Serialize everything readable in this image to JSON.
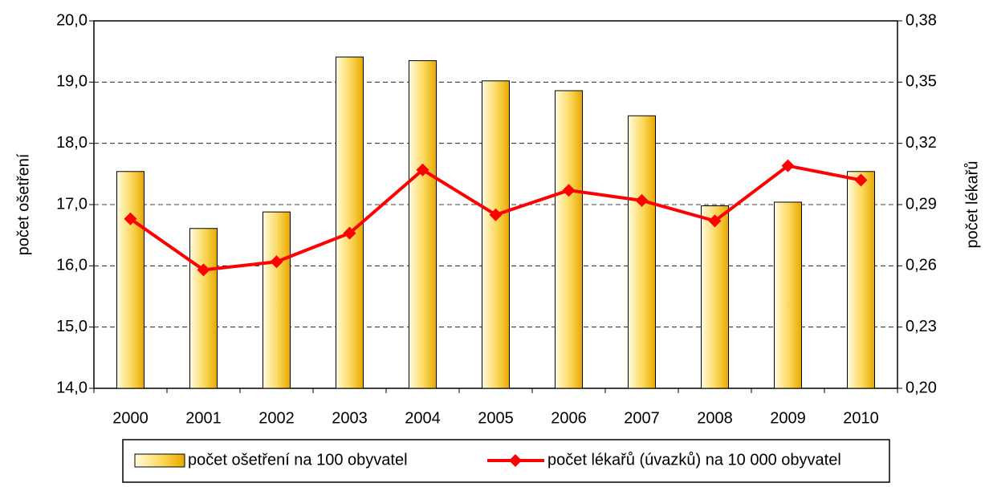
{
  "chart_data": {
    "type": "bar-line",
    "categories": [
      "2000",
      "2001",
      "2002",
      "2003",
      "2004",
      "2005",
      "2006",
      "2007",
      "2008",
      "2009",
      "2010"
    ],
    "y_label": "počet ošetření",
    "y2_label": "počet lékařů",
    "series": [
      {
        "name": "počet ošetření na 100 obyvatel",
        "type": "bar",
        "color": "#f7c62f",
        "values": [
          17.54,
          16.61,
          16.88,
          19.41,
          19.35,
          19.02,
          18.86,
          18.45,
          16.98,
          17.04,
          17.54
        ]
      },
      {
        "name": "počet lékařů (úvazků) na 10 000 obyvatel",
        "type": "line",
        "axis": "y2",
        "color": "#ff0000",
        "values": [
          0.283,
          0.258,
          0.262,
          0.276,
          0.307,
          0.285,
          0.297,
          0.292,
          0.282,
          0.309,
          0.302
        ]
      }
    ],
    "ylim": [
      14,
      20
    ],
    "yticks": [
      {
        "value": 14,
        "label": "14,0"
      },
      {
        "value": 15,
        "label": "15,0"
      },
      {
        "value": 16,
        "label": "16,0"
      },
      {
        "value": 17,
        "label": "17,0"
      },
      {
        "value": 18,
        "label": "18,0"
      },
      {
        "value": 19,
        "label": "19,0"
      },
      {
        "value": 20,
        "label": "20,0"
      }
    ],
    "y2lim": [
      0.2,
      0.38
    ],
    "y2ticks": [
      {
        "value": 0.2,
        "label": "0,20"
      },
      {
        "value": 0.23,
        "label": "0,23"
      },
      {
        "value": 0.26,
        "label": "0,26"
      },
      {
        "value": 0.29,
        "label": "0,29"
      },
      {
        "value": 0.32,
        "label": "0,32"
      },
      {
        "value": 0.35,
        "label": "0,35"
      },
      {
        "value": 0.38,
        "label": "0,38"
      }
    ],
    "grid": true,
    "legend": "bottom"
  }
}
